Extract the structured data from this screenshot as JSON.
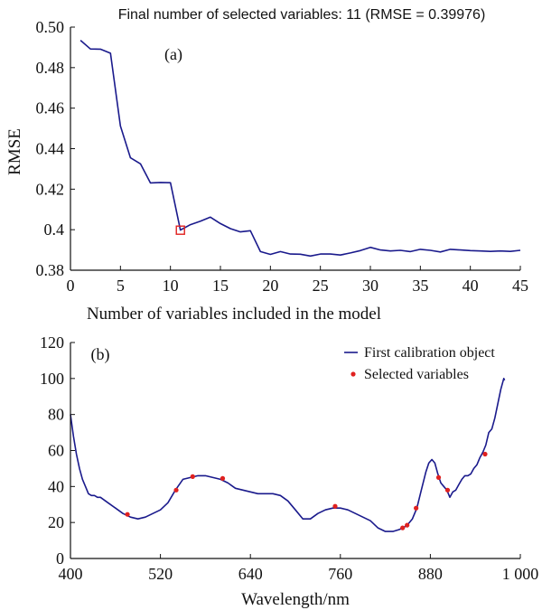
{
  "chart_data": [
    {
      "type": "line",
      "title": "Final number of selected variables: 11  (RMSE = 0.39976)",
      "panel_label": "(a)",
      "xlabel": "Number of variables included in the model",
      "ylabel": "RMSE",
      "xlim": [
        0,
        45
      ],
      "ylim": [
        0.38,
        0.5
      ],
      "xticks": [
        0,
        5,
        10,
        15,
        20,
        25,
        30,
        35,
        40,
        45
      ],
      "xtick_labels": [
        "0",
        "5",
        "10",
        "15",
        "20",
        "25",
        "30",
        "35",
        "40",
        "45"
      ],
      "yticks": [
        0.38,
        0.4,
        0.42,
        0.44,
        0.46,
        0.48,
        0.5
      ],
      "ytick_labels": [
        "0.38",
        "0.4",
        "0.42",
        "0.44",
        "0.46",
        "0.48",
        "0.50"
      ],
      "grid": false,
      "line_color": "#1a1a8c",
      "marker_color": "#e0211f",
      "series": [
        {
          "x": [
            1,
            2,
            3,
            4,
            5,
            6,
            7,
            8,
            9,
            10,
            11,
            12,
            13,
            14,
            15,
            16,
            17,
            18,
            19,
            20,
            21,
            22,
            23,
            24,
            25,
            26,
            27,
            28,
            29,
            30,
            31,
            32,
            33,
            34,
            35,
            36,
            37,
            38,
            39,
            40,
            41,
            42,
            43,
            44,
            45
          ],
          "values": [
            0.4935,
            0.4892,
            0.4891,
            0.4871,
            0.4512,
            0.4355,
            0.4325,
            0.4231,
            0.4233,
            0.4232,
            0.3998,
            0.4025,
            0.4042,
            0.4062,
            0.403,
            0.4005,
            0.3989,
            0.3995,
            0.3892,
            0.3878,
            0.3892,
            0.388,
            0.3879,
            0.387,
            0.388,
            0.388,
            0.3875,
            0.3885,
            0.3897,
            0.3913,
            0.39,
            0.3895,
            0.3898,
            0.3892,
            0.3903,
            0.3898,
            0.389,
            0.3903,
            0.39,
            0.3897,
            0.3895,
            0.3893,
            0.3895,
            0.3893,
            0.3898
          ]
        }
      ],
      "highlight": {
        "x": 11,
        "y": 0.39976
      }
    },
    {
      "type": "line",
      "panel_label": "(b)",
      "xlabel": "Wavelength/nm",
      "ylabel": "",
      "xlim": [
        400,
        1000
      ],
      "ylim": [
        0,
        120
      ],
      "xticks": [
        400,
        520,
        640,
        760,
        880,
        1000
      ],
      "xtick_labels": [
        "400",
        "520",
        "640",
        "760",
        "880",
        "1 000"
      ],
      "yticks": [
        0,
        20,
        40,
        60,
        80,
        100,
        120
      ],
      "ytick_labels": [
        "0",
        "20",
        "40",
        "60",
        "80",
        "100",
        "120"
      ],
      "grid": false,
      "legend_position": "top-right",
      "series": [
        {
          "name": "First calibration object",
          "color": "#1a1a8c",
          "x": [
            400,
            404,
            408,
            412,
            416,
            420,
            424,
            428,
            432,
            436,
            440,
            450,
            460,
            470,
            480,
            490,
            500,
            510,
            520,
            530,
            540,
            550,
            560,
            570,
            580,
            590,
            600,
            610,
            620,
            630,
            640,
            650,
            660,
            670,
            680,
            690,
            700,
            710,
            720,
            730,
            740,
            750,
            760,
            770,
            780,
            790,
            800,
            810,
            820,
            830,
            838,
            844,
            850,
            856,
            862,
            868,
            874,
            878,
            882,
            886,
            890,
            894,
            898,
            902,
            906,
            910,
            914,
            918,
            922,
            926,
            930,
            934,
            938,
            942,
            946,
            950,
            954,
            958,
            962,
            966,
            970,
            974,
            978,
            979
          ],
          "values": [
            80,
            68,
            58,
            50,
            44,
            40,
            36,
            35,
            35,
            34,
            34,
            31,
            28,
            25,
            23,
            22,
            23,
            25,
            27,
            31,
            38,
            44,
            45,
            46,
            46,
            45,
            44,
            42,
            39,
            38,
            37,
            36,
            36,
            36,
            35,
            32,
            27,
            22,
            22,
            25,
            27,
            28,
            28,
            27,
            25,
            23,
            21,
            17,
            15,
            15,
            16,
            17,
            19,
            22,
            28,
            38,
            48,
            53,
            55,
            53,
            47,
            42,
            40,
            38,
            34,
            37,
            38,
            41,
            44,
            46,
            46,
            47,
            50,
            52,
            56,
            59,
            63,
            70,
            72,
            78,
            86,
            94,
            100,
            99
          ]
        },
        {
          "name": "Selected variables",
          "color": "#e0211f",
          "x": [
            476,
            541,
            563,
            603,
            753,
            843,
            849,
            861,
            891,
            903,
            953
          ],
          "values": [
            24.5,
            38.0,
            45.5,
            44.5,
            29.0,
            17.0,
            18.5,
            28.0,
            45.0,
            38.0,
            58.0
          ]
        }
      ]
    }
  ]
}
